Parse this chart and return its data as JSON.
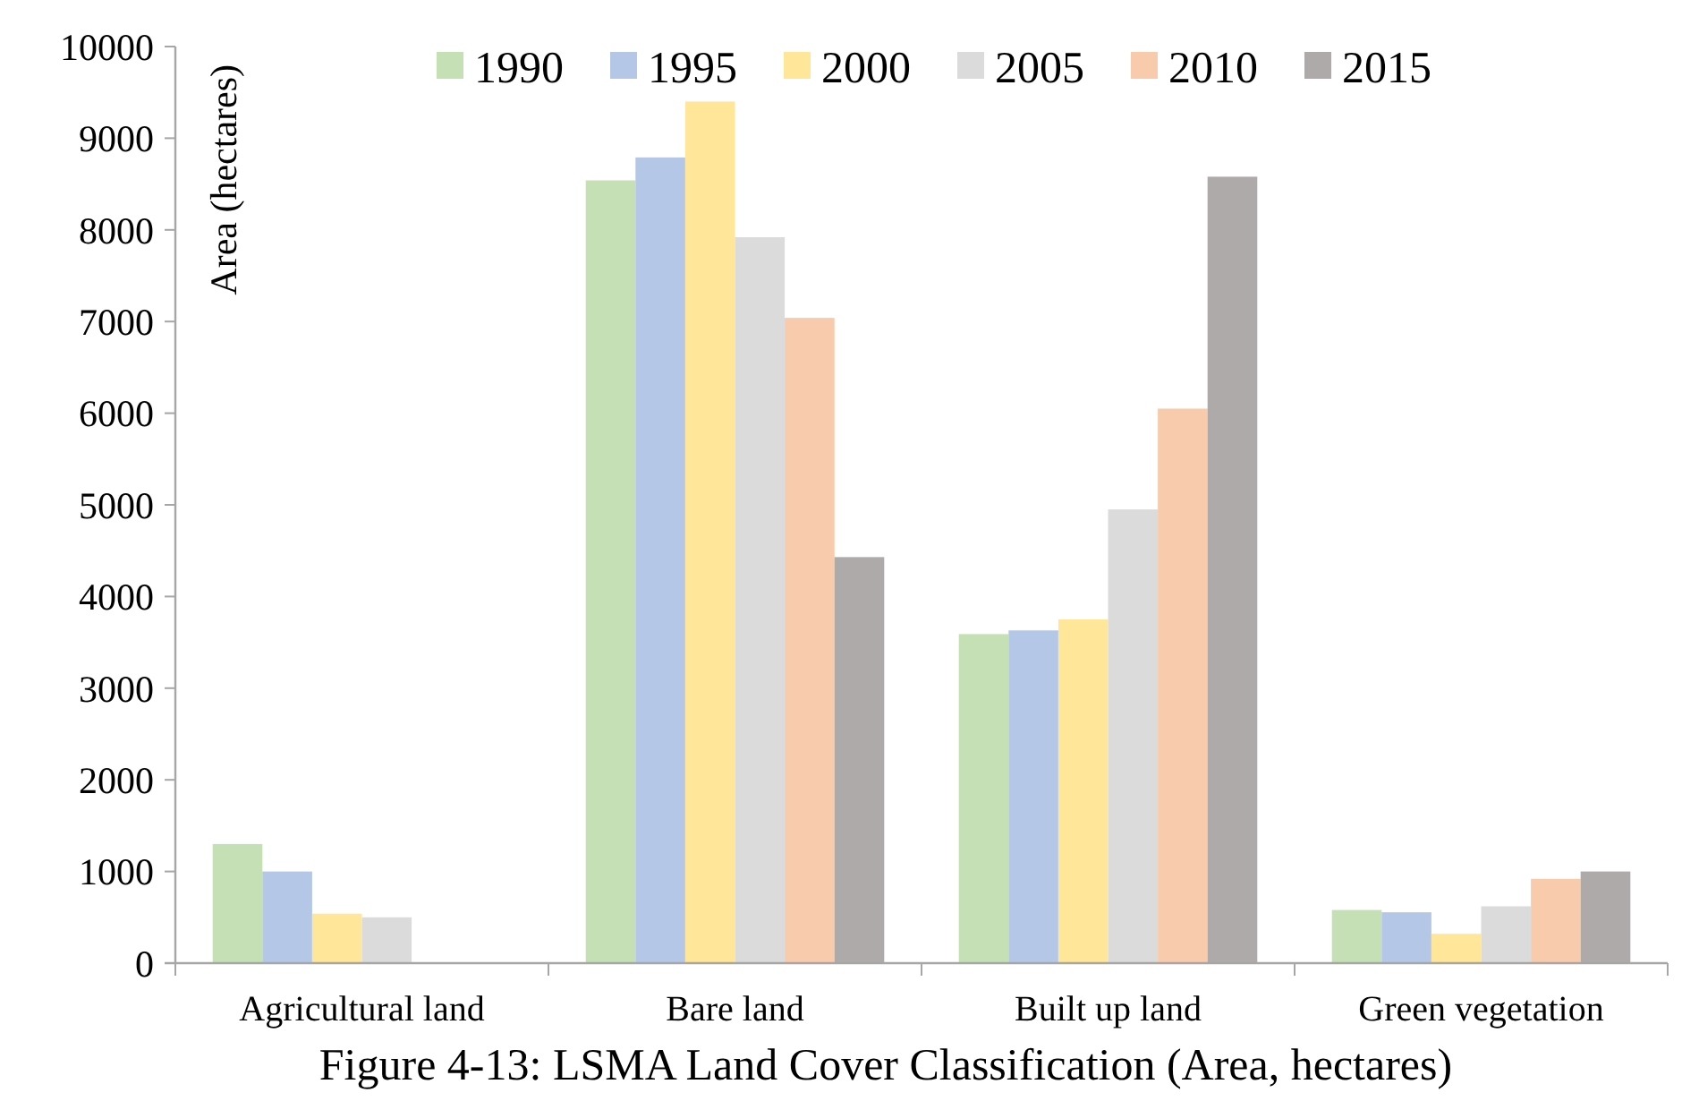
{
  "chart_data": {
    "type": "bar",
    "ylabel": "Area (hectares)",
    "categories": [
      "Agricultural land",
      "Bare land",
      "Built up land",
      "Green vegetation"
    ],
    "series": [
      {
        "name": "1990",
        "color": "#c5e0b4",
        "values": [
          1300,
          8540,
          3590,
          580
        ]
      },
      {
        "name": "1995",
        "color": "#b4c7e7",
        "values": [
          1000,
          8790,
          3630,
          555
        ]
      },
      {
        "name": "2000",
        "color": "#ffe699",
        "values": [
          540,
          9400,
          3750,
          320
        ]
      },
      {
        "name": "2005",
        "color": "#dbdbdb",
        "values": [
          500,
          7920,
          4950,
          620
        ]
      },
      {
        "name": "2010",
        "color": "#f8cbad",
        "values": [
          0,
          7040,
          6050,
          920
        ]
      },
      {
        "name": "2015",
        "color": "#aeaaaa",
        "values": [
          0,
          4430,
          8580,
          1000
        ]
      }
    ],
    "ylim": [
      0,
      10000
    ],
    "yticks": [
      0,
      1000,
      2000,
      3000,
      4000,
      5000,
      6000,
      7000,
      8000,
      9000,
      10000
    ],
    "grid": false,
    "legend": "top",
    "annotations": [
      "Figure 4-13: LSMA Land Cover Classification (Area, hectares)"
    ]
  }
}
